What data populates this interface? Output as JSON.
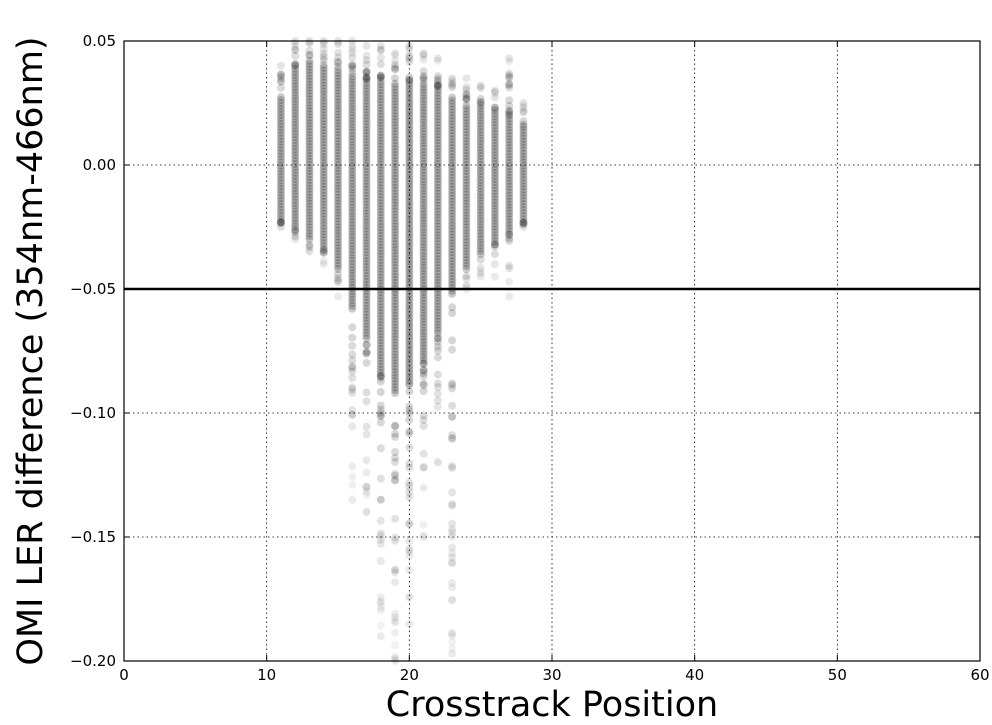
{
  "chart_data": {
    "type": "scatter",
    "title": "",
    "xlabel": "Crosstrack Position",
    "ylabel": "OMI LER difference (354nm-466nm)",
    "xlim": [
      0,
      60
    ],
    "ylim": [
      -0.2,
      0.05
    ],
    "xticks": [
      0,
      10,
      20,
      30,
      40,
      50,
      60
    ],
    "xtick_labels": [
      "0",
      "10",
      "20",
      "30",
      "40",
      "50",
      "60"
    ],
    "yticks": [
      -0.2,
      -0.15,
      -0.1,
      -0.05,
      0.0,
      0.05
    ],
    "ytick_labels": [
      "−0.20",
      "−0.15",
      "−0.10",
      "−0.05",
      "0.00",
      "0.05"
    ],
    "grid": true,
    "reference_line_y": -0.05,
    "point_color": "#000000",
    "line_color": "#000000",
    "columns": [
      {
        "x": 11,
        "dense": [
          -0.023,
          0.028
        ],
        "sparse_min": -0.025,
        "sparse_max": 0.04
      },
      {
        "x": 12,
        "dense": [
          -0.026,
          0.04
        ],
        "sparse_min": -0.03,
        "sparse_max": 0.05
      },
      {
        "x": 13,
        "dense": [
          -0.03,
          0.042
        ],
        "sparse_min": -0.035,
        "sparse_max": 0.05
      },
      {
        "x": 14,
        "dense": [
          -0.034,
          0.04
        ],
        "sparse_min": -0.04,
        "sparse_max": 0.05
      },
      {
        "x": 15,
        "dense": [
          -0.042,
          0.038
        ],
        "sparse_min": -0.053,
        "sparse_max": 0.05
      },
      {
        "x": 16,
        "dense": [
          -0.058,
          0.036
        ],
        "sparse_min": -0.135,
        "sparse_max": 0.05
      },
      {
        "x": 17,
        "dense": [
          -0.07,
          0.035
        ],
        "sparse_min": -0.14,
        "sparse_max": 0.048
      },
      {
        "x": 18,
        "dense": [
          -0.085,
          0.035
        ],
        "sparse_min": -0.19,
        "sparse_max": 0.048
      },
      {
        "x": 19,
        "dense": [
          -0.092,
          0.034
        ],
        "sparse_min": -0.2,
        "sparse_max": 0.045
      },
      {
        "x": 20,
        "dense": [
          -0.088,
          0.034
        ],
        "sparse_min": -0.185,
        "sparse_max": 0.048
      },
      {
        "x": 21,
        "dense": [
          -0.08,
          0.034
        ],
        "sparse_min": -0.15,
        "sparse_max": 0.045
      },
      {
        "x": 22,
        "dense": [
          -0.068,
          0.032
        ],
        "sparse_min": -0.12,
        "sparse_max": 0.043
      },
      {
        "x": 23,
        "dense": [
          -0.052,
          0.028
        ],
        "sparse_min": -0.197,
        "sparse_max": 0.035
      },
      {
        "x": 24,
        "dense": [
          -0.042,
          0.025
        ],
        "sparse_min": -0.05,
        "sparse_max": 0.035
      },
      {
        "x": 25,
        "dense": [
          -0.036,
          0.025
        ],
        "sparse_min": -0.045,
        "sparse_max": 0.032
      },
      {
        "x": 26,
        "dense": [
          -0.032,
          0.022
        ],
        "sparse_min": -0.045,
        "sparse_max": 0.03
      },
      {
        "x": 27,
        "dense": [
          -0.028,
          0.02
        ],
        "sparse_min": -0.053,
        "sparse_max": 0.043
      },
      {
        "x": 28,
        "dense": [
          -0.023,
          0.016
        ],
        "sparse_min": -0.025,
        "sparse_max": 0.025
      }
    ]
  }
}
